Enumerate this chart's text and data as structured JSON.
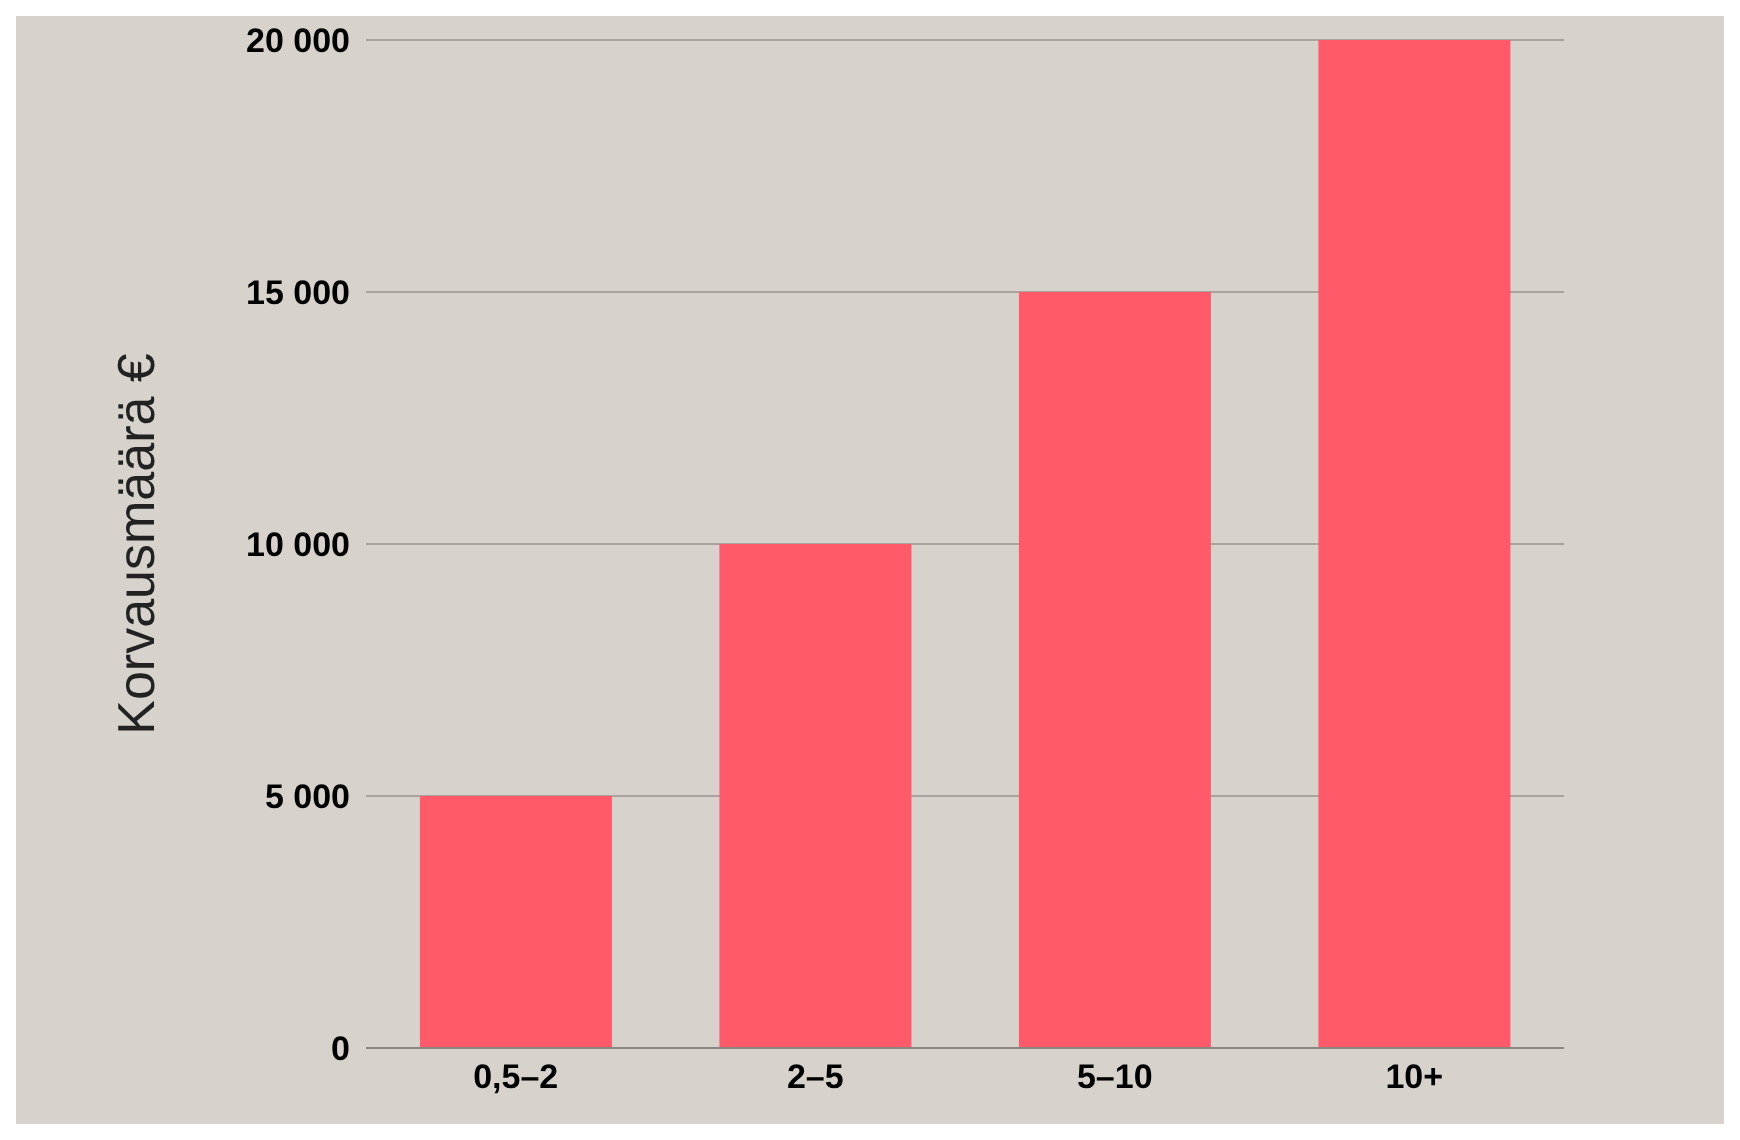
{
  "chart_data": {
    "type": "bar",
    "ylabel": "Korvausmäärä €",
    "categories": [
      "0,5–2",
      "2–5",
      "5–10",
      "10+"
    ],
    "values": [
      5000,
      10000,
      15000,
      20000
    ],
    "color": "#fe5a6a",
    "ylim": [
      0,
      20000
    ],
    "yticks": [
      {
        "value": 0,
        "label": "0"
      },
      {
        "value": 5000,
        "label": "5 000"
      },
      {
        "value": 10000,
        "label": "10 000"
      },
      {
        "value": 15000,
        "label": "15 000"
      },
      {
        "value": 20000,
        "label": "20 000"
      }
    ],
    "grid": "y"
  }
}
